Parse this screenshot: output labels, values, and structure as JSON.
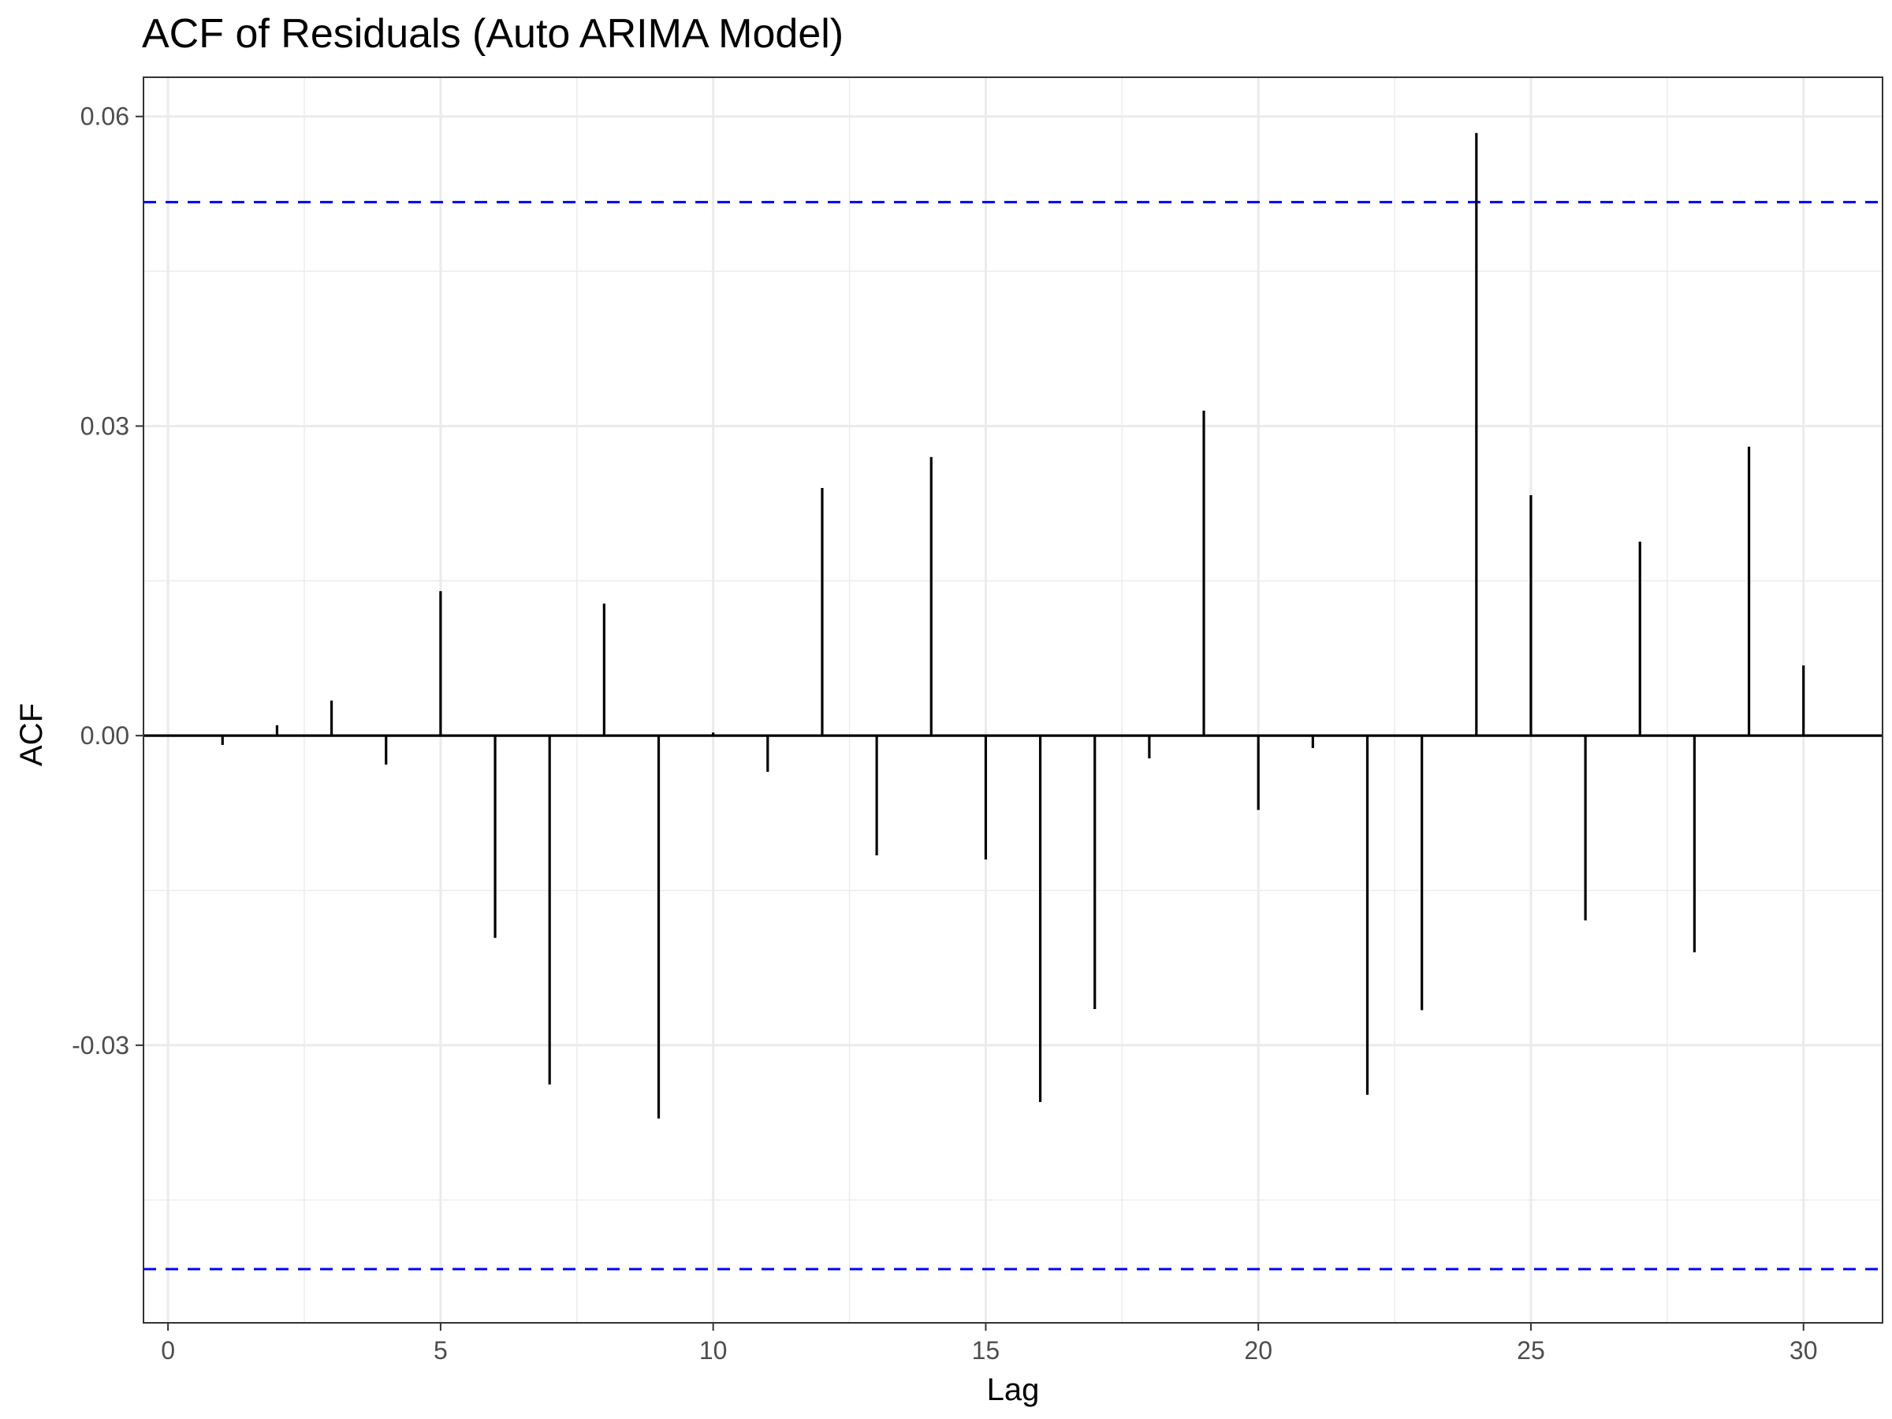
{
  "chart_data": {
    "type": "bar",
    "title": "ACF of Residuals (Auto ARIMA Model)",
    "xlabel": "Lag",
    "ylabel": "ACF",
    "x": [
      1,
      2,
      3,
      4,
      5,
      6,
      7,
      8,
      9,
      10,
      11,
      12,
      13,
      14,
      15,
      16,
      17,
      18,
      19,
      20,
      21,
      22,
      23,
      24,
      25,
      26,
      27,
      28,
      29,
      30
    ],
    "values": [
      -0.0009,
      0.001,
      0.0034,
      -0.0028,
      0.014,
      -0.0196,
      -0.0338,
      0.0128,
      -0.0371,
      0.0003,
      -0.0035,
      0.024,
      -0.0116,
      0.027,
      -0.012,
      -0.0355,
      -0.0265,
      -0.0022,
      0.0315,
      -0.0072,
      -0.0012,
      -0.0348,
      -0.0266,
      0.0584,
      0.0233,
      -0.0179,
      0.0188,
      -0.021,
      0.028,
      0.0068
    ],
    "confidence_bounds": [
      0.0517,
      -0.0517
    ],
    "xlim": [
      -0.45,
      31.45
    ],
    "ylim": [
      -0.0569,
      0.0638
    ],
    "x_ticks": [
      0,
      5,
      10,
      15,
      20,
      25,
      30
    ],
    "x_tick_labels": [
      "0",
      "5",
      "10",
      "15",
      "20",
      "25",
      "30"
    ],
    "y_ticks": [
      0.06,
      0.03,
      0.0,
      -0.03
    ],
    "y_tick_labels": [
      "0.06",
      "0.03",
      "0.00",
      "-0.03"
    ],
    "y_minor_ticks": [
      0.045,
      0.015,
      -0.015,
      -0.045
    ],
    "x_minor_ticks": [
      2.5,
      7.5,
      12.5,
      17.5,
      22.5,
      27.5
    ],
    "grid": true,
    "colors": {
      "bar": "#000000",
      "zero_line": "#000000",
      "confidence_line": "#0000ff",
      "grid": "#ebebeb",
      "panel_border": "#333333"
    }
  }
}
